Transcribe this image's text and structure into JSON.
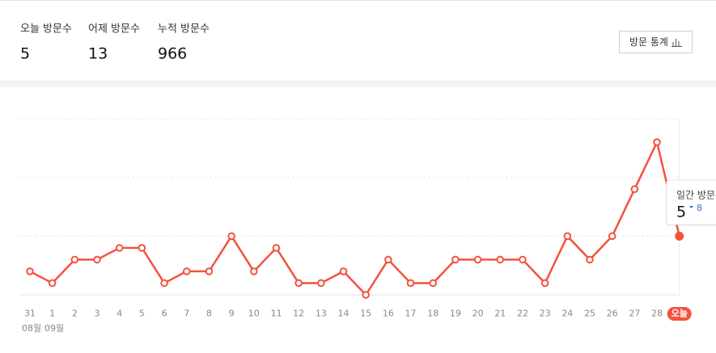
{
  "stats": [
    {
      "label": "오늘 방문수",
      "value": "5"
    },
    {
      "label": "어제 방문수",
      "value": "13"
    },
    {
      "label": "누적 방문수",
      "value": "966"
    }
  ],
  "button": "방문 통계",
  "chart_data": {
    "type": "line",
    "categories": [
      "31",
      "1",
      "2",
      "3",
      "4",
      "5",
      "6",
      "7",
      "8",
      "9",
      "10",
      "11",
      "12",
      "13",
      "14",
      "15",
      "16",
      "17",
      "18",
      "19",
      "20",
      "21",
      "22",
      "23",
      "24",
      "25",
      "26",
      "27",
      "28",
      "오늘"
    ],
    "values": [
      2,
      1,
      3,
      3,
      4,
      4,
      1,
      2,
      2,
      5,
      2,
      4,
      1,
      1,
      2,
      0,
      3,
      1,
      1,
      3,
      3,
      3,
      3,
      1,
      5,
      3,
      5,
      9,
      13,
      5
    ],
    "color": "#f4523f",
    "ylim": [
      0,
      15
    ],
    "yticks": [
      0,
      5,
      10,
      15
    ],
    "grid": true,
    "months": [
      "08월",
      "09월"
    ],
    "tooltip": {
      "title": "일간 방문수",
      "value": "5",
      "change": "8"
    }
  }
}
